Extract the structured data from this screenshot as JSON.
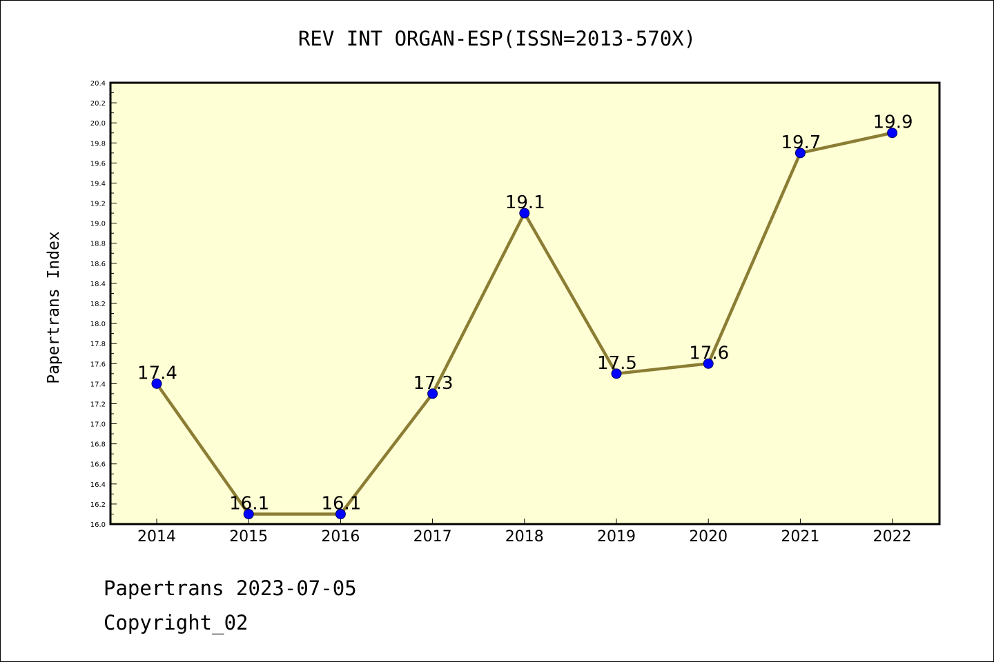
{
  "chart_data": {
    "type": "line",
    "title": "REV INT ORGAN-ESP(ISSN=2013-570X)",
    "xlabel": "",
    "ylabel": "Papertrans Index",
    "categories": [
      "2014",
      "2015",
      "2016",
      "2017",
      "2018",
      "2019",
      "2020",
      "2021",
      "2022"
    ],
    "series": [
      {
        "values": [
          17.4,
          16.1,
          16.1,
          17.3,
          19.1,
          17.5,
          17.6,
          19.7,
          19.9
        ],
        "data_labels": [
          "17.4",
          "16.1",
          "16.1",
          "17.3",
          "19.1",
          "17.5",
          "17.6",
          "19.7",
          "19.9"
        ]
      }
    ],
    "ylim": [
      16.0,
      20.4
    ],
    "y_ticks": [
      "16.0",
      "16.2",
      "16.4",
      "16.6",
      "16.8",
      "17.0",
      "17.2",
      "17.4",
      "17.6",
      "17.8",
      "18.0",
      "18.2",
      "18.4",
      "18.6",
      "18.8",
      "19.0",
      "19.2",
      "19.4",
      "19.6",
      "19.8",
      "20.0",
      "20.2",
      "20.4"
    ],
    "grid": false,
    "colors": {
      "plot_background": "#ffffd5",
      "line": "#8b7d34",
      "marker_fill": "#0000ff",
      "marker_edge": "#000060"
    }
  },
  "footer": {
    "line1": "Papertrans 2023-07-05",
    "line2": "Copyright_02"
  }
}
